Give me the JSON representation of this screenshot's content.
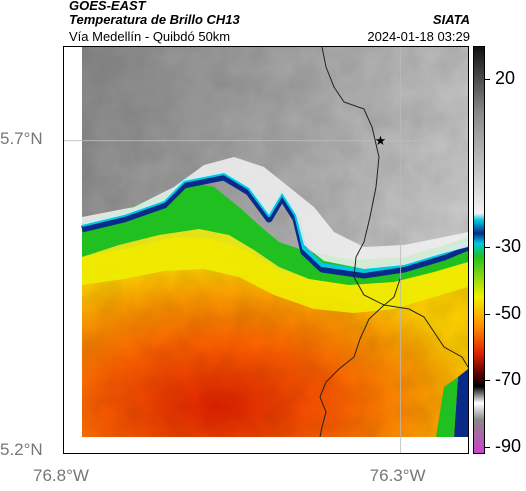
{
  "header": {
    "satellite": "GOES-EAST",
    "product": "Temperatura de Brillo CH13",
    "route": "Vía Medellín - Quibdó 50km",
    "agency": "SIATA",
    "timestamp": "2024-01-18 03:29"
  },
  "map": {
    "lon_range": [
      -76.8,
      -76.2
    ],
    "lat_range": [
      5.2,
      5.85
    ],
    "marker": {
      "lon": -76.33,
      "lat": 5.7,
      "icon": "star-icon"
    },
    "x_ticks": [
      {
        "value": -76.8,
        "label": "76.8°W"
      },
      {
        "value": -76.3,
        "label": "76.3°W"
      }
    ],
    "y_ticks": [
      {
        "value": 5.7,
        "label": "5.7°N"
      },
      {
        "value": 5.2,
        "label": "5.2°N"
      }
    ]
  },
  "colorbar": {
    "units_range": [
      -92,
      30
    ],
    "ticks": [
      {
        "value": 20,
        "label": "20"
      },
      {
        "value": -30,
        "label": "-30"
      },
      {
        "value": -50,
        "label": "-50"
      },
      {
        "value": -70,
        "label": "-70"
      },
      {
        "value": -90,
        "label": "-90"
      }
    ],
    "colors": {
      "warm": "#ffffff",
      "gray": "#909090",
      "cyan": "#00c8e0",
      "blue": "#0a2a8a",
      "green": "#20c020",
      "yellow": "#f0f000",
      "orange": "#ff8c00",
      "red": "#e02000",
      "black": "#000000",
      "magenta": "#d040d0"
    }
  }
}
